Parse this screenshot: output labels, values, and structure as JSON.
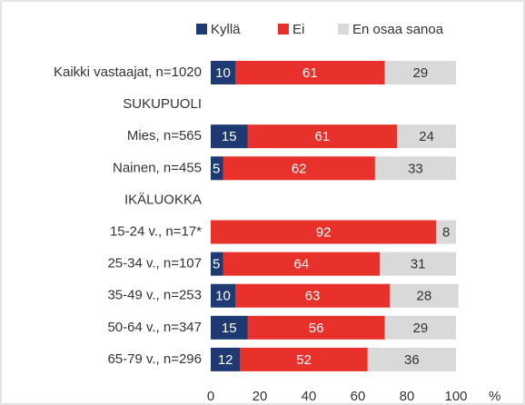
{
  "chart_data": {
    "type": "stacked-bar-horizontal",
    "categories": [
      "Kaikki vastaajat, n=1020",
      "SUKUPUOLI",
      "Mies, n=565",
      "Nainen, n=455",
      "IKÄLUOKKA",
      "15-24 v., n=17*",
      "25-34 v., n=107",
      "35-49 v., n=253",
      "50-64 v., n=347",
      "65-79 v., n=296"
    ],
    "series": [
      {
        "name": "Kyllä",
        "color": "#1f3a73",
        "values": [
          10,
          null,
          15,
          5,
          null,
          null,
          5,
          10,
          15,
          12
        ]
      },
      {
        "name": "Ei",
        "color": "#e8312a",
        "values": [
          61,
          null,
          61,
          62,
          null,
          92,
          64,
          63,
          56,
          52
        ]
      },
      {
        "name": "En osaa sanoa",
        "color": "#d9d9d9",
        "values": [
          29,
          null,
          24,
          33,
          null,
          8,
          31,
          28,
          29,
          36
        ]
      }
    ],
    "xlim": [
      0,
      100
    ],
    "xticks": [
      0,
      20,
      40,
      60,
      80,
      100
    ],
    "xlabel": "%",
    "legend": "top"
  }
}
